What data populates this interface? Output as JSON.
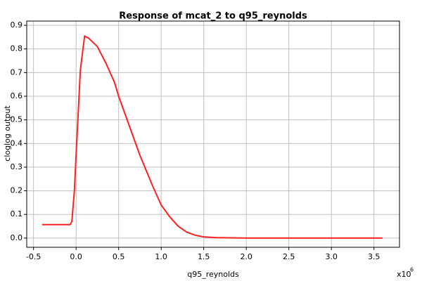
{
  "chart_data": {
    "type": "line",
    "title": "Response of mcat_2 to q95_reynolds",
    "x_label": "q95_reynolds",
    "y_label": "cloglog output",
    "x_multiplier": "x10",
    "x_multiplier_exponent": "6",
    "x": [
      -0.4,
      -0.07,
      -0.05,
      -0.02,
      0.0,
      0.05,
      0.1,
      0.15,
      0.25,
      0.35,
      0.45,
      0.5,
      0.6,
      0.75,
      0.9,
      1.0,
      1.1,
      1.2,
      1.3,
      1.4,
      1.5,
      1.65,
      2.0,
      3.6
    ],
    "series": [
      {
        "name": "cloglog output",
        "color": "#ff2020",
        "values": [
          0.057,
          0.057,
          0.07,
          0.2,
          0.35,
          0.71,
          0.855,
          0.845,
          0.81,
          0.74,
          0.66,
          0.6,
          0.5,
          0.35,
          0.22,
          0.14,
          0.09,
          0.05,
          0.025,
          0.012,
          0.005,
          0.002,
          0.0,
          0.0
        ]
      }
    ],
    "xlim": [
      -0.58,
      3.8
    ],
    "ylim": [
      -0.039,
      0.918
    ],
    "xticks": [
      -0.5,
      {
        "value": 0,
        "label": "0.0"
      },
      0.5,
      {
        "value": 1,
        "label": "1.0"
      },
      1.5,
      {
        "value": 2,
        "label": "2.0"
      },
      2.5,
      {
        "value": 3,
        "label": "3.0"
      },
      3.5
    ],
    "yticks": [
      {
        "value": 0,
        "label": "0.0"
      },
      0.1,
      0.2,
      0.3,
      0.4,
      0.5,
      0.6,
      0.7,
      0.8,
      0.9
    ],
    "grid": true
  }
}
